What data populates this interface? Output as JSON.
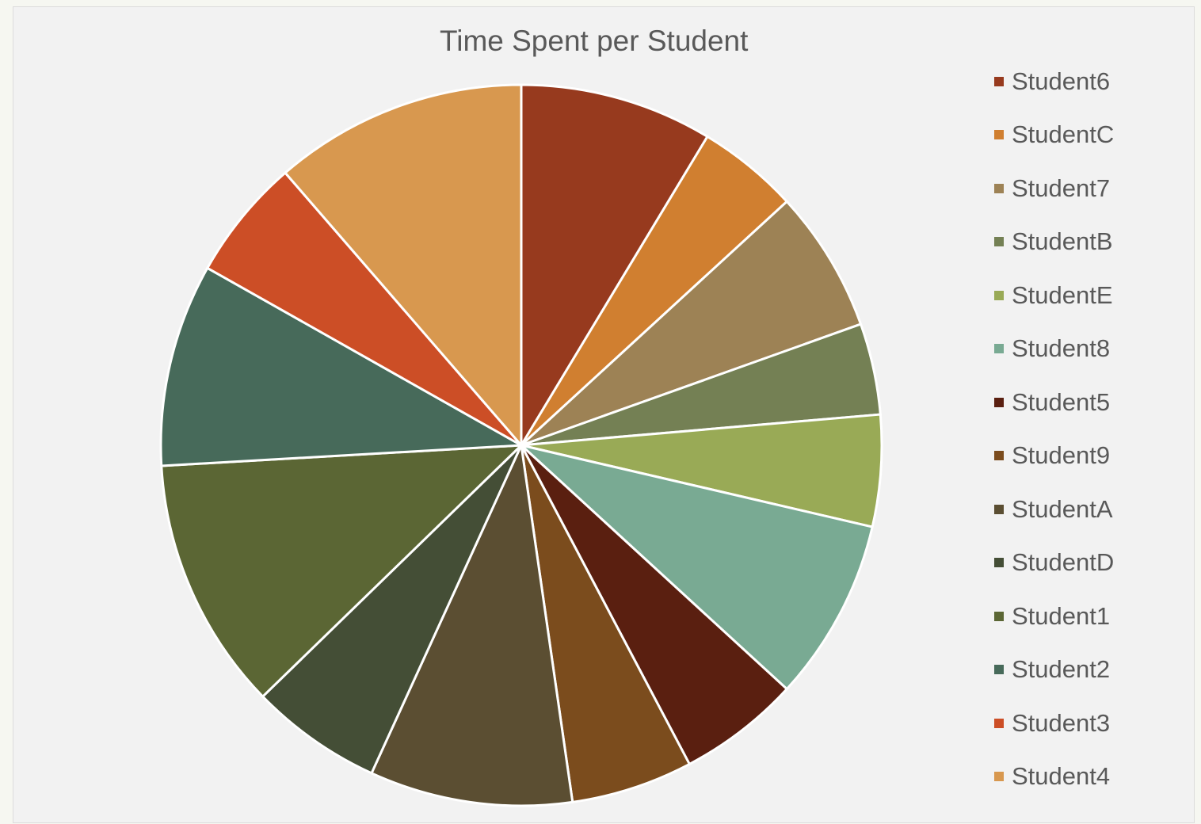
{
  "chart_data": {
    "type": "pie",
    "title": "Time Spent per Student",
    "legend_position": "right",
    "start_angle_deg": 0,
    "direction": "clockwise",
    "slices": [
      {
        "name": "Student6",
        "value": 9.5,
        "color": "#973a1e"
      },
      {
        "name": "StudentC",
        "value": 5.0,
        "color": "#d07f30"
      },
      {
        "name": "Student7",
        "value": 7.0,
        "color": "#9d8255"
      },
      {
        "name": "StudentB",
        "value": 4.5,
        "color": "#748054"
      },
      {
        "name": "StudentE",
        "value": 5.5,
        "color": "#99aa56"
      },
      {
        "name": "Student8",
        "value": 9.0,
        "color": "#79aa93"
      },
      {
        "name": "Student5",
        "value": 6.0,
        "color": "#5a1f10"
      },
      {
        "name": "Student9",
        "value": 6.0,
        "color": "#7b4c1d"
      },
      {
        "name": "StudentA",
        "value": 10.0,
        "color": "#5b4e32"
      },
      {
        "name": "StudentD",
        "value": 6.5,
        "color": "#444e36"
      },
      {
        "name": "Student1",
        "value": 12.5,
        "color": "#5b6634"
      },
      {
        "name": "Student2",
        "value": 10.0,
        "color": "#476a5a"
      },
      {
        "name": "Student3",
        "value": 6.0,
        "color": "#cc4e26"
      },
      {
        "name": "Student4",
        "value": 12.5,
        "color": "#d8984f"
      }
    ]
  }
}
